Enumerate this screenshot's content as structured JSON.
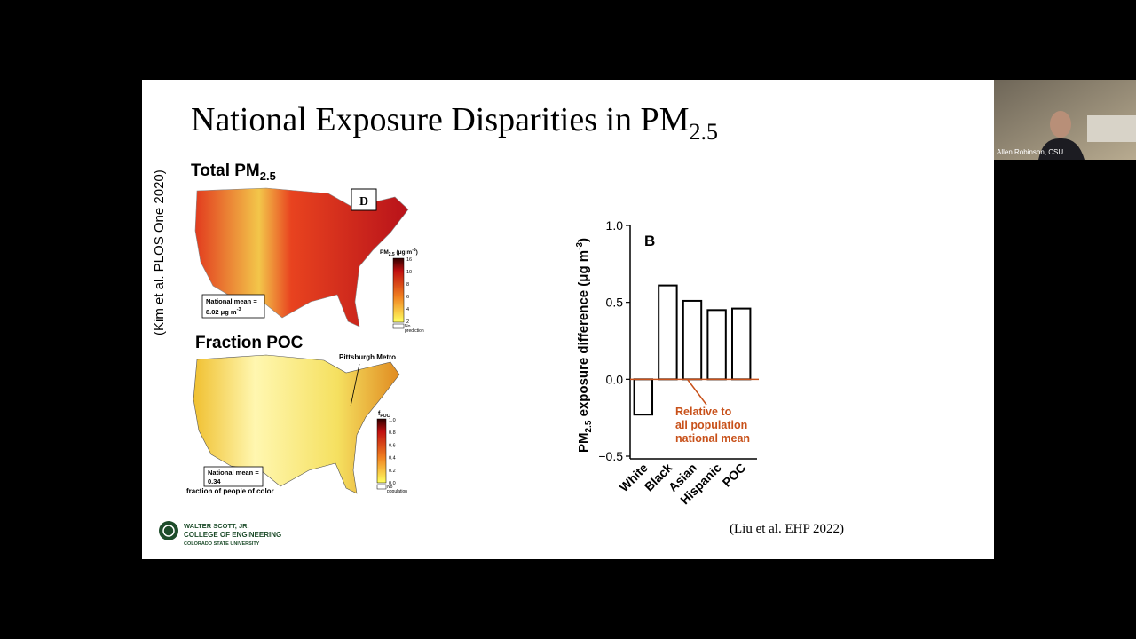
{
  "video_tile": {
    "name": "Allen Robinson, CSU"
  },
  "slide": {
    "title": {
      "text": "National Exposure Disparities in PM",
      "sub": "2.5"
    },
    "side_citation": "(Kim et al. PLOS One 2020)",
    "map_total": {
      "heading": "Total PM",
      "heading_sub": "2.5",
      "panel": "D",
      "mean_label": "National mean =",
      "mean_value": "8.02 μg m",
      "mean_sup": "-3",
      "legend_title": "PM",
      "legend_title_sub": "2.5",
      "legend_unit": " (μg m",
      "legend_unit_sup": "-3",
      "legend_unit_end": ")",
      "legend_ticks": [
        "16",
        "10",
        "8",
        "6",
        "4",
        "2"
      ],
      "legend_none": [
        "No",
        "prediction"
      ]
    },
    "map_poc": {
      "heading": "Fraction POC",
      "callout": "Pittsburgh Metro",
      "legend_title": "f",
      "legend_title_sub": "POC",
      "legend_ticks": [
        "1.0",
        "0.8",
        "0.6",
        "0.4",
        "0.2",
        "0.0"
      ],
      "legend_none": [
        "No",
        "population"
      ],
      "mean_label": "National mean =",
      "mean_value": "0.34",
      "caption": "fraction of people of color"
    },
    "logo": [
      "WALTER SCOTT, JR.",
      "COLLEGE OF ENGINEERING",
      "COLORADO STATE UNIVERSITY"
    ],
    "chart": {
      "type": "bar",
      "panel": "B",
      "ylabel": {
        "a": "PM",
        "sub": "2.5",
        "b": " exposure difference (μg m",
        "sup": "-3",
        "c": ")"
      },
      "categories": [
        "White",
        "Black",
        "Asian",
        "Hispanic",
        "POC"
      ],
      "values": [
        -0.23,
        0.61,
        0.51,
        0.45,
        0.46
      ],
      "color": "#000000",
      "ylim": [
        -0.5,
        1.0
      ],
      "yticks": [
        {
          "value": -0.5,
          "label": "−0.5"
        },
        {
          "value": 0,
          "label": "0.0"
        },
        0.5,
        {
          "value": 1,
          "label": "1.0"
        }
      ],
      "reference_color": "#c8511a",
      "annotation": [
        "Relative to",
        "all population",
        "national mean"
      ]
    },
    "citation": "(Liu et al. EHP 2022)"
  }
}
